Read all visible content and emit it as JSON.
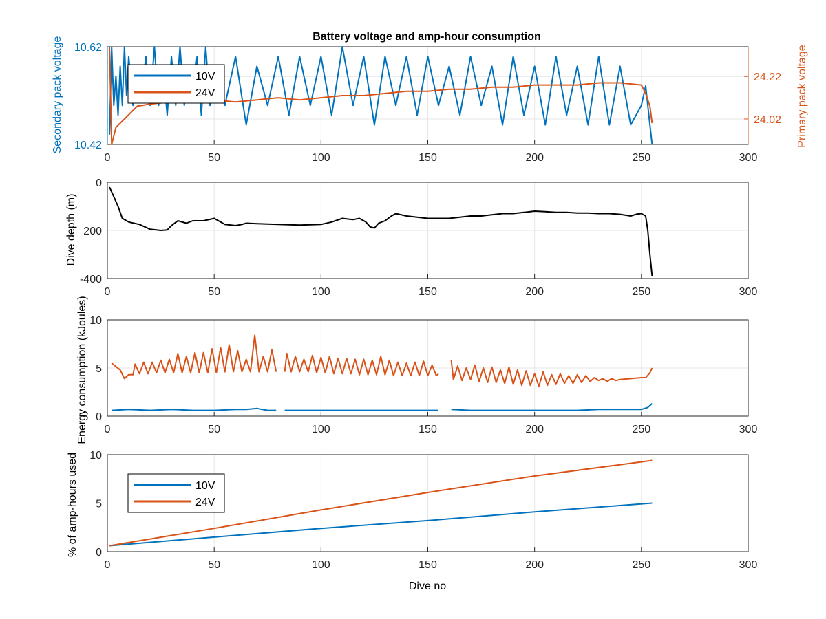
{
  "chart_data": [
    {
      "type": "line",
      "title": "Battery voltage and amp-hour consumption",
      "xlabel": "",
      "xlim": [
        0,
        300
      ],
      "xticks": [
        "0",
        "50",
        "100",
        "150",
        "200",
        "250",
        "300"
      ],
      "left_axis": {
        "label": "Secondary pack voltage",
        "ylim": [
          10.42,
          10.62
        ],
        "ticks": [
          "10.42",
          "10.62"
        ],
        "color": "#0072BD"
      },
      "right_axis": {
        "label": "Primary pack voltage",
        "ylim": [
          23.9,
          24.36
        ],
        "ticks": [
          "24.02",
          "24.22"
        ],
        "color": "#D95319"
      },
      "grid": true,
      "legend": {
        "position": "top-left",
        "entries": [
          "10V",
          "24V"
        ]
      },
      "series": [
        {
          "name": "10V",
          "axis": "left",
          "color": "#0072BD",
          "x": [
            1,
            2,
            3,
            4,
            5,
            6,
            7,
            8,
            9,
            10,
            12,
            14,
            16,
            18,
            20,
            22,
            24,
            26,
            28,
            30,
            32,
            34,
            36,
            38,
            40,
            42,
            44,
            46,
            48,
            50,
            55,
            60,
            65,
            70,
            75,
            80,
            85,
            90,
            95,
            100,
            105,
            110,
            115,
            120,
            125,
            130,
            135,
            140,
            145,
            150,
            155,
            160,
            165,
            170,
            175,
            180,
            185,
            190,
            195,
            200,
            205,
            210,
            215,
            220,
            225,
            230,
            235,
            240,
            245,
            250,
            252,
            254,
            255
          ],
          "y": [
            10.44,
            10.62,
            10.5,
            10.56,
            10.48,
            10.58,
            10.5,
            10.62,
            10.52,
            10.6,
            10.5,
            10.58,
            10.52,
            10.6,
            10.5,
            10.62,
            10.5,
            10.58,
            10.48,
            10.6,
            10.5,
            10.62,
            10.5,
            10.58,
            10.52,
            10.6,
            10.48,
            10.62,
            10.5,
            10.56,
            10.5,
            10.6,
            10.46,
            10.58,
            10.5,
            10.6,
            10.48,
            10.6,
            10.5,
            10.6,
            10.48,
            10.62,
            10.5,
            10.6,
            10.46,
            10.6,
            10.5,
            10.6,
            10.48,
            10.6,
            10.5,
            10.58,
            10.48,
            10.6,
            10.5,
            10.58,
            10.46,
            10.6,
            10.48,
            10.58,
            10.46,
            10.6,
            10.48,
            10.58,
            10.46,
            10.6,
            10.46,
            10.58,
            10.46,
            10.5,
            10.54,
            10.46,
            10.42
          ]
        },
        {
          "name": "24V",
          "axis": "right",
          "color": "#D95319",
          "x": [
            1,
            2,
            3,
            4,
            6,
            8,
            10,
            12,
            14,
            20,
            30,
            40,
            50,
            60,
            70,
            80,
            90,
            100,
            110,
            120,
            130,
            140,
            150,
            160,
            170,
            180,
            190,
            200,
            210,
            220,
            230,
            240,
            250,
            252,
            254,
            255
          ],
          "y": [
            24.36,
            23.9,
            23.94,
            23.98,
            24.0,
            24.02,
            24.04,
            24.06,
            24.08,
            24.09,
            24.1,
            24.1,
            24.11,
            24.1,
            24.11,
            24.12,
            24.11,
            24.12,
            24.13,
            24.13,
            24.14,
            24.15,
            24.15,
            24.16,
            24.16,
            24.17,
            24.17,
            24.18,
            24.18,
            24.18,
            24.19,
            24.19,
            24.18,
            24.14,
            24.08,
            24.0
          ]
        }
      ]
    },
    {
      "type": "line",
      "title": "",
      "xlabel": "",
      "ylabel": "Dive depth (m)",
      "xlim": [
        0,
        300
      ],
      "ylim": [
        0,
        400
      ],
      "y_reversed": true,
      "xticks": [
        "0",
        "50",
        "100",
        "150",
        "200",
        "250",
        "300"
      ],
      "yticks": [
        "0",
        "200",
        "-400"
      ],
      "grid": true,
      "series": [
        {
          "name": "",
          "color": "#000000",
          "x": [
            1,
            3,
            5,
            7,
            10,
            15,
            20,
            25,
            28,
            30,
            33,
            37,
            40,
            45,
            50,
            55,
            60,
            63,
            65,
            70,
            80,
            90,
            100,
            105,
            110,
            115,
            118,
            121,
            123,
            125,
            127,
            130,
            133,
            135,
            140,
            145,
            150,
            155,
            160,
            165,
            170,
            175,
            180,
            185,
            190,
            195,
            200,
            205,
            210,
            215,
            220,
            225,
            230,
            235,
            240,
            245,
            248,
            250,
            252,
            253,
            254,
            255
          ],
          "y": [
            20,
            60,
            100,
            150,
            165,
            175,
            195,
            200,
            198,
            180,
            160,
            170,
            160,
            160,
            150,
            175,
            180,
            175,
            170,
            172,
            175,
            178,
            175,
            165,
            150,
            155,
            150,
            165,
            185,
            190,
            170,
            160,
            140,
            130,
            140,
            145,
            150,
            150,
            150,
            145,
            140,
            140,
            135,
            130,
            130,
            125,
            120,
            122,
            125,
            125,
            128,
            128,
            130,
            130,
            133,
            140,
            132,
            130,
            140,
            200,
            300,
            390
          ]
        }
      ]
    },
    {
      "type": "line",
      "title": "",
      "xlabel": "",
      "ylabel": "Energy consumption (kJoules)",
      "xlim": [
        0,
        300
      ],
      "ylim": [
        0,
        10
      ],
      "xticks": [
        "0",
        "50",
        "100",
        "150",
        "200",
        "250",
        "300"
      ],
      "yticks": [
        "0",
        "5",
        "10"
      ],
      "grid": true,
      "series": [
        {
          "name": "24V",
          "color": "#D95319",
          "x": [
            2,
            6,
            8,
            10,
            12,
            13,
            15,
            17,
            19,
            21,
            23,
            25,
            27,
            29,
            31,
            33,
            35,
            37,
            39,
            41,
            43,
            45,
            47,
            49,
            51,
            53,
            55,
            57,
            59,
            61,
            63,
            65,
            67,
            69,
            71,
            73,
            75,
            77,
            79,
            null,
            83,
            84,
            86,
            88,
            90,
            92,
            94,
            96,
            98,
            100,
            102,
            104,
            106,
            108,
            110,
            112,
            114,
            116,
            118,
            120,
            122,
            124,
            126,
            128,
            130,
            132,
            134,
            136,
            138,
            140,
            142,
            144,
            146,
            148,
            150,
            152,
            154,
            155,
            null,
            161,
            162,
            164,
            166,
            168,
            170,
            172,
            174,
            176,
            178,
            180,
            182,
            184,
            186,
            188,
            190,
            192,
            194,
            196,
            198,
            200,
            202,
            204,
            206,
            208,
            210,
            212,
            214,
            216,
            218,
            220,
            222,
            224,
            226,
            228,
            230,
            232,
            234,
            236,
            238,
            240,
            245,
            250,
            252,
            254,
            255
          ],
          "y": [
            5.5,
            4.8,
            3.9,
            4.3,
            4.3,
            5.4,
            4.4,
            5.6,
            4.4,
            5.6,
            4.5,
            5.8,
            4.5,
            5.9,
            4.5,
            6.5,
            4.5,
            6.2,
            4.5,
            6.6,
            4.5,
            6.6,
            4.5,
            7.0,
            4.5,
            7.1,
            4.6,
            7.4,
            4.6,
            6.8,
            4.6,
            5.9,
            4.6,
            8.4,
            4.6,
            6.2,
            4.6,
            6.9,
            4.6,
            null,
            4.6,
            6.5,
            4.6,
            6.2,
            4.6,
            5.9,
            4.6,
            6.3,
            4.5,
            6.1,
            4.5,
            6.2,
            4.4,
            6.0,
            4.4,
            6.0,
            4.4,
            5.9,
            4.3,
            5.9,
            4.3,
            5.8,
            4.3,
            6.2,
            4.3,
            5.8,
            4.2,
            5.6,
            4.2,
            5.5,
            4.2,
            5.6,
            4.2,
            5.7,
            4.2,
            5.3,
            4.2,
            4.4,
            null,
            5.8,
            3.8,
            5.2,
            3.7,
            5.0,
            3.8,
            5.3,
            3.6,
            5.0,
            3.5,
            5.1,
            3.5,
            4.8,
            3.4,
            5.1,
            3.3,
            4.8,
            3.2,
            4.7,
            3.2,
            4.4,
            3.1,
            4.6,
            3.2,
            4.3,
            3.3,
            4.4,
            3.4,
            4.2,
            3.4,
            4.3,
            3.5,
            4.2,
            3.6,
            4.0,
            3.7,
            3.9,
            3.6,
            3.9,
            3.7,
            3.8,
            3.9,
            4.0,
            4.0,
            4.5,
            5.0
          ]
        },
        {
          "name": "10V",
          "color": "#0072BD",
          "x": [
            2,
            10,
            20,
            30,
            40,
            50,
            60,
            65,
            70,
            75,
            79,
            null,
            83,
            90,
            100,
            110,
            120,
            130,
            140,
            150,
            155,
            null,
            161,
            170,
            180,
            190,
            200,
            210,
            220,
            230,
            240,
            250,
            253,
            255
          ],
          "y": [
            0.6,
            0.7,
            0.6,
            0.7,
            0.6,
            0.6,
            0.7,
            0.7,
            0.8,
            0.6,
            0.6,
            null,
            0.6,
            0.6,
            0.6,
            0.6,
            0.6,
            0.6,
            0.6,
            0.6,
            0.6,
            null,
            0.7,
            0.6,
            0.6,
            0.6,
            0.6,
            0.6,
            0.6,
            0.7,
            0.7,
            0.7,
            0.9,
            1.3
          ]
        }
      ]
    },
    {
      "type": "line",
      "title": "",
      "xlabel": "Dive no",
      "ylabel": "% of amp-hours used",
      "xlim": [
        0,
        300
      ],
      "ylim": [
        0,
        10
      ],
      "xticks": [
        "0",
        "50",
        "100",
        "150",
        "200",
        "250",
        "300"
      ],
      "yticks": [
        "0",
        "5",
        "10"
      ],
      "grid": true,
      "legend": {
        "position": "top-left",
        "entries": [
          "10V",
          "24V"
        ]
      },
      "series": [
        {
          "name": "10V",
          "color": "#0072BD",
          "x": [
            1,
            50,
            100,
            150,
            200,
            255
          ],
          "y": [
            0.6,
            1.5,
            2.4,
            3.2,
            4.1,
            5.0
          ]
        },
        {
          "name": "24V",
          "color": "#D95319",
          "x": [
            1,
            50,
            100,
            150,
            200,
            255
          ],
          "y": [
            0.6,
            2.4,
            4.3,
            6.1,
            7.8,
            9.4
          ]
        }
      ]
    }
  ]
}
